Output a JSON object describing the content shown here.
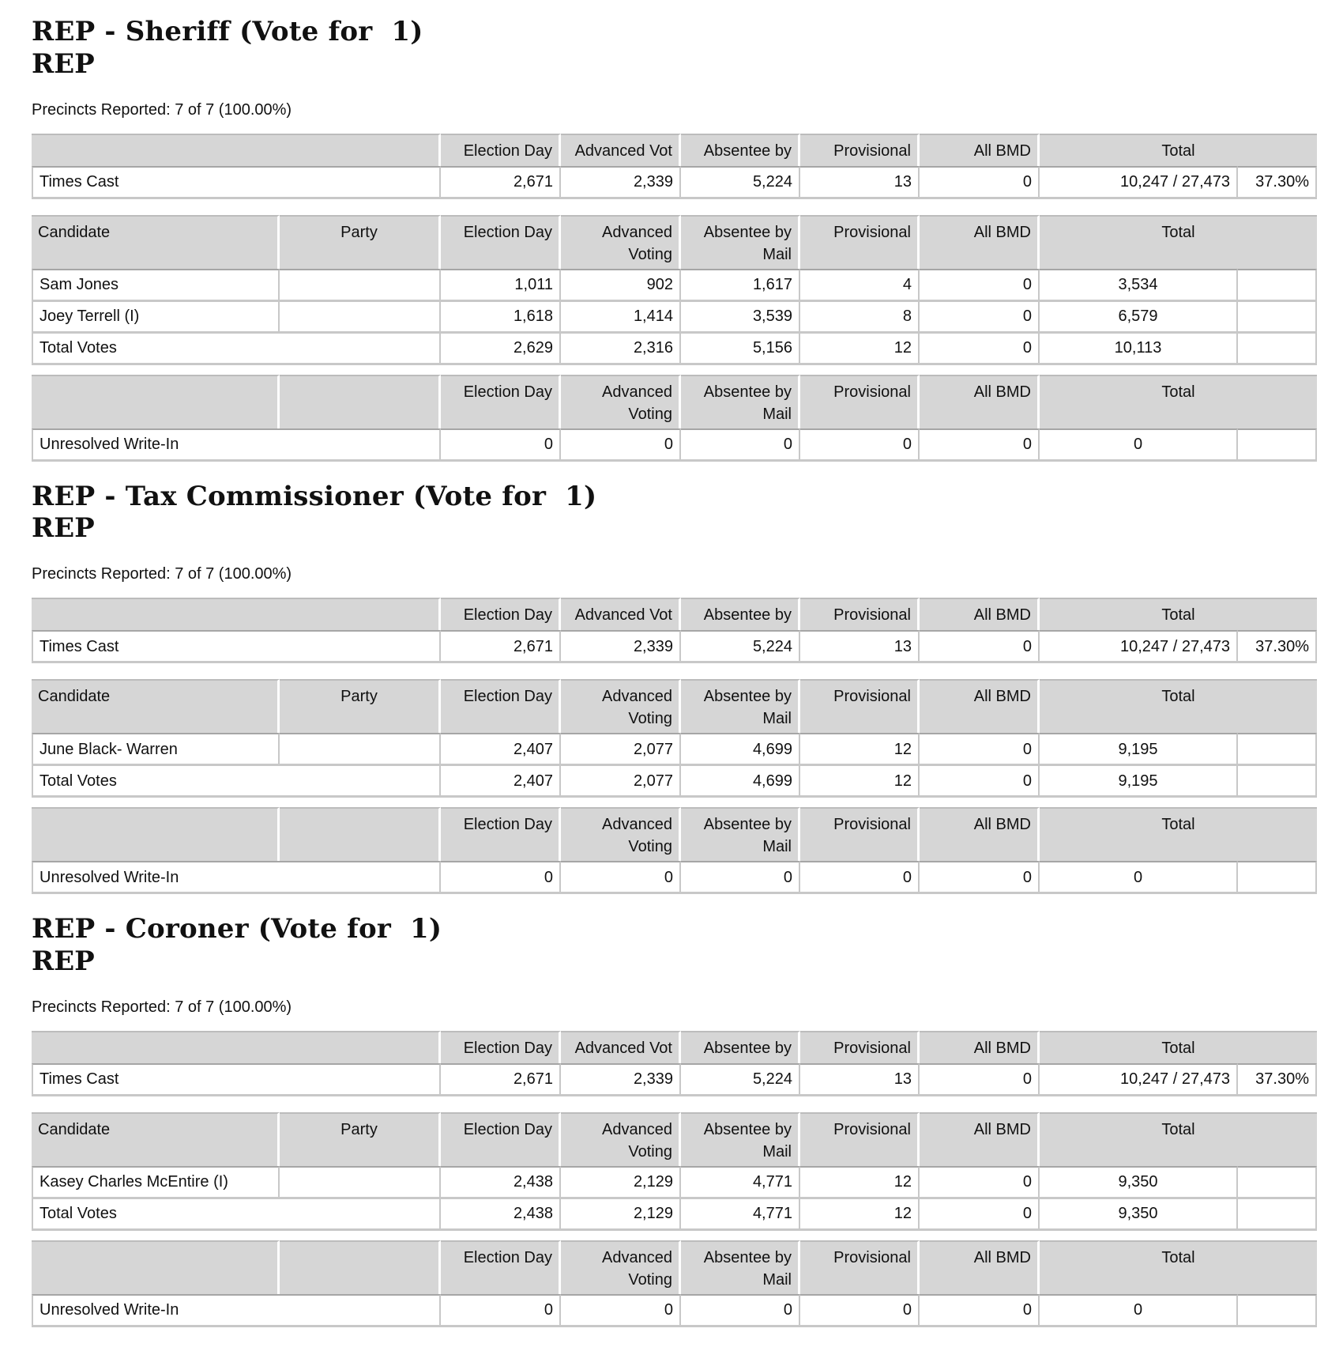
{
  "colors": {
    "header_bg": "#d6d6d6",
    "row_border": "#c8c8c8",
    "header_divider": "#ffffff",
    "text": "#111111"
  },
  "sections": [
    {
      "title": "REP - Sheriff (Vote for  1)",
      "subtitle": "REP",
      "precincts": "Precincts Reported: 7 of 7 (100.00%)",
      "times_cast": {
        "headers": [
          "",
          "Election Day",
          "Advanced Vot",
          "Absentee by",
          "Provisional",
          "All BMD",
          "Total"
        ],
        "label": "Times Cast",
        "values": [
          "2,671",
          "2,339",
          "5,224",
          "13",
          "0"
        ],
        "total": "10,247 / 27,473",
        "percent": "37.30%"
      },
      "candidates": {
        "headers": [
          "Candidate",
          "Party",
          "Election Day",
          "Advanced\nVoting",
          "Absentee by\nMail",
          "Provisional",
          "All BMD",
          "Total"
        ],
        "rows": [
          {
            "label": "Sam Jones",
            "party": "",
            "merged": false,
            "values": [
              "1,011",
              "902",
              "1,617",
              "4",
              "0"
            ],
            "total": "3,534",
            "percent": ""
          },
          {
            "label": "Joey Terrell (I)",
            "party": "",
            "merged": false,
            "values": [
              "1,618",
              "1,414",
              "3,539",
              "8",
              "0"
            ],
            "total": "6,579",
            "percent": ""
          },
          {
            "label": "Total Votes",
            "party": "",
            "merged": true,
            "values": [
              "2,629",
              "2,316",
              "5,156",
              "12",
              "0"
            ],
            "total": "10,113",
            "percent": ""
          }
        ]
      },
      "write_in": {
        "headers": [
          "",
          "",
          "Election Day",
          "Advanced\nVoting",
          "Absentee by\nMail",
          "Provisional",
          "All BMD",
          "Total"
        ],
        "rows": [
          {
            "label": "Unresolved Write-In",
            "merged": true,
            "values": [
              "0",
              "0",
              "0",
              "0",
              "0"
            ],
            "total": "0",
            "percent": ""
          }
        ]
      }
    },
    {
      "title": "REP - Tax Commissioner (Vote for  1)",
      "subtitle": "REP",
      "precincts": "Precincts Reported: 7 of 7 (100.00%)",
      "times_cast": {
        "headers": [
          "",
          "Election Day",
          "Advanced Vot",
          "Absentee by",
          "Provisional",
          "All BMD",
          "Total"
        ],
        "label": "Times Cast",
        "values": [
          "2,671",
          "2,339",
          "5,224",
          "13",
          "0"
        ],
        "total": "10,247 / 27,473",
        "percent": "37.30%"
      },
      "candidates": {
        "headers": [
          "Candidate",
          "Party",
          "Election Day",
          "Advanced\nVoting",
          "Absentee by\nMail",
          "Provisional",
          "All BMD",
          "Total"
        ],
        "rows": [
          {
            "label": "June Black- Warren",
            "party": "",
            "merged": false,
            "values": [
              "2,407",
              "2,077",
              "4,699",
              "12",
              "0"
            ],
            "total": "9,195",
            "percent": ""
          },
          {
            "label": "Total Votes",
            "party": "",
            "merged": true,
            "values": [
              "2,407",
              "2,077",
              "4,699",
              "12",
              "0"
            ],
            "total": "9,195",
            "percent": ""
          }
        ]
      },
      "write_in": {
        "headers": [
          "",
          "",
          "Election Day",
          "Advanced\nVoting",
          "Absentee by\nMail",
          "Provisional",
          "All BMD",
          "Total"
        ],
        "rows": [
          {
            "label": "Unresolved Write-In",
            "merged": true,
            "values": [
              "0",
              "0",
              "0",
              "0",
              "0"
            ],
            "total": "0",
            "percent": ""
          }
        ]
      }
    },
    {
      "title": "REP - Coroner (Vote for  1)",
      "subtitle": "REP",
      "precincts": "Precincts Reported: 7 of 7 (100.00%)",
      "times_cast": {
        "headers": [
          "",
          "Election Day",
          "Advanced Vot",
          "Absentee by",
          "Provisional",
          "All BMD",
          "Total"
        ],
        "label": "Times Cast",
        "values": [
          "2,671",
          "2,339",
          "5,224",
          "13",
          "0"
        ],
        "total": "10,247 / 27,473",
        "percent": "37.30%"
      },
      "candidates": {
        "headers": [
          "Candidate",
          "Party",
          "Election Day",
          "Advanced\nVoting",
          "Absentee by\nMail",
          "Provisional",
          "All BMD",
          "Total"
        ],
        "rows": [
          {
            "label": "Kasey Charles McEntire (I)",
            "party": "",
            "merged": false,
            "values": [
              "2,438",
              "2,129",
              "4,771",
              "12",
              "0"
            ],
            "total": "9,350",
            "percent": ""
          },
          {
            "label": "Total Votes",
            "party": "",
            "merged": true,
            "values": [
              "2,438",
              "2,129",
              "4,771",
              "12",
              "0"
            ],
            "total": "9,350",
            "percent": ""
          }
        ]
      },
      "write_in": {
        "headers": [
          "",
          "",
          "Election Day",
          "Advanced\nVoting",
          "Absentee by\nMail",
          "Provisional",
          "All BMD",
          "Total"
        ],
        "rows": [
          {
            "label": "Unresolved Write-In",
            "merged": true,
            "values": [
              "0",
              "0",
              "0",
              "0",
              "0"
            ],
            "total": "0",
            "percent": ""
          }
        ]
      }
    }
  ]
}
